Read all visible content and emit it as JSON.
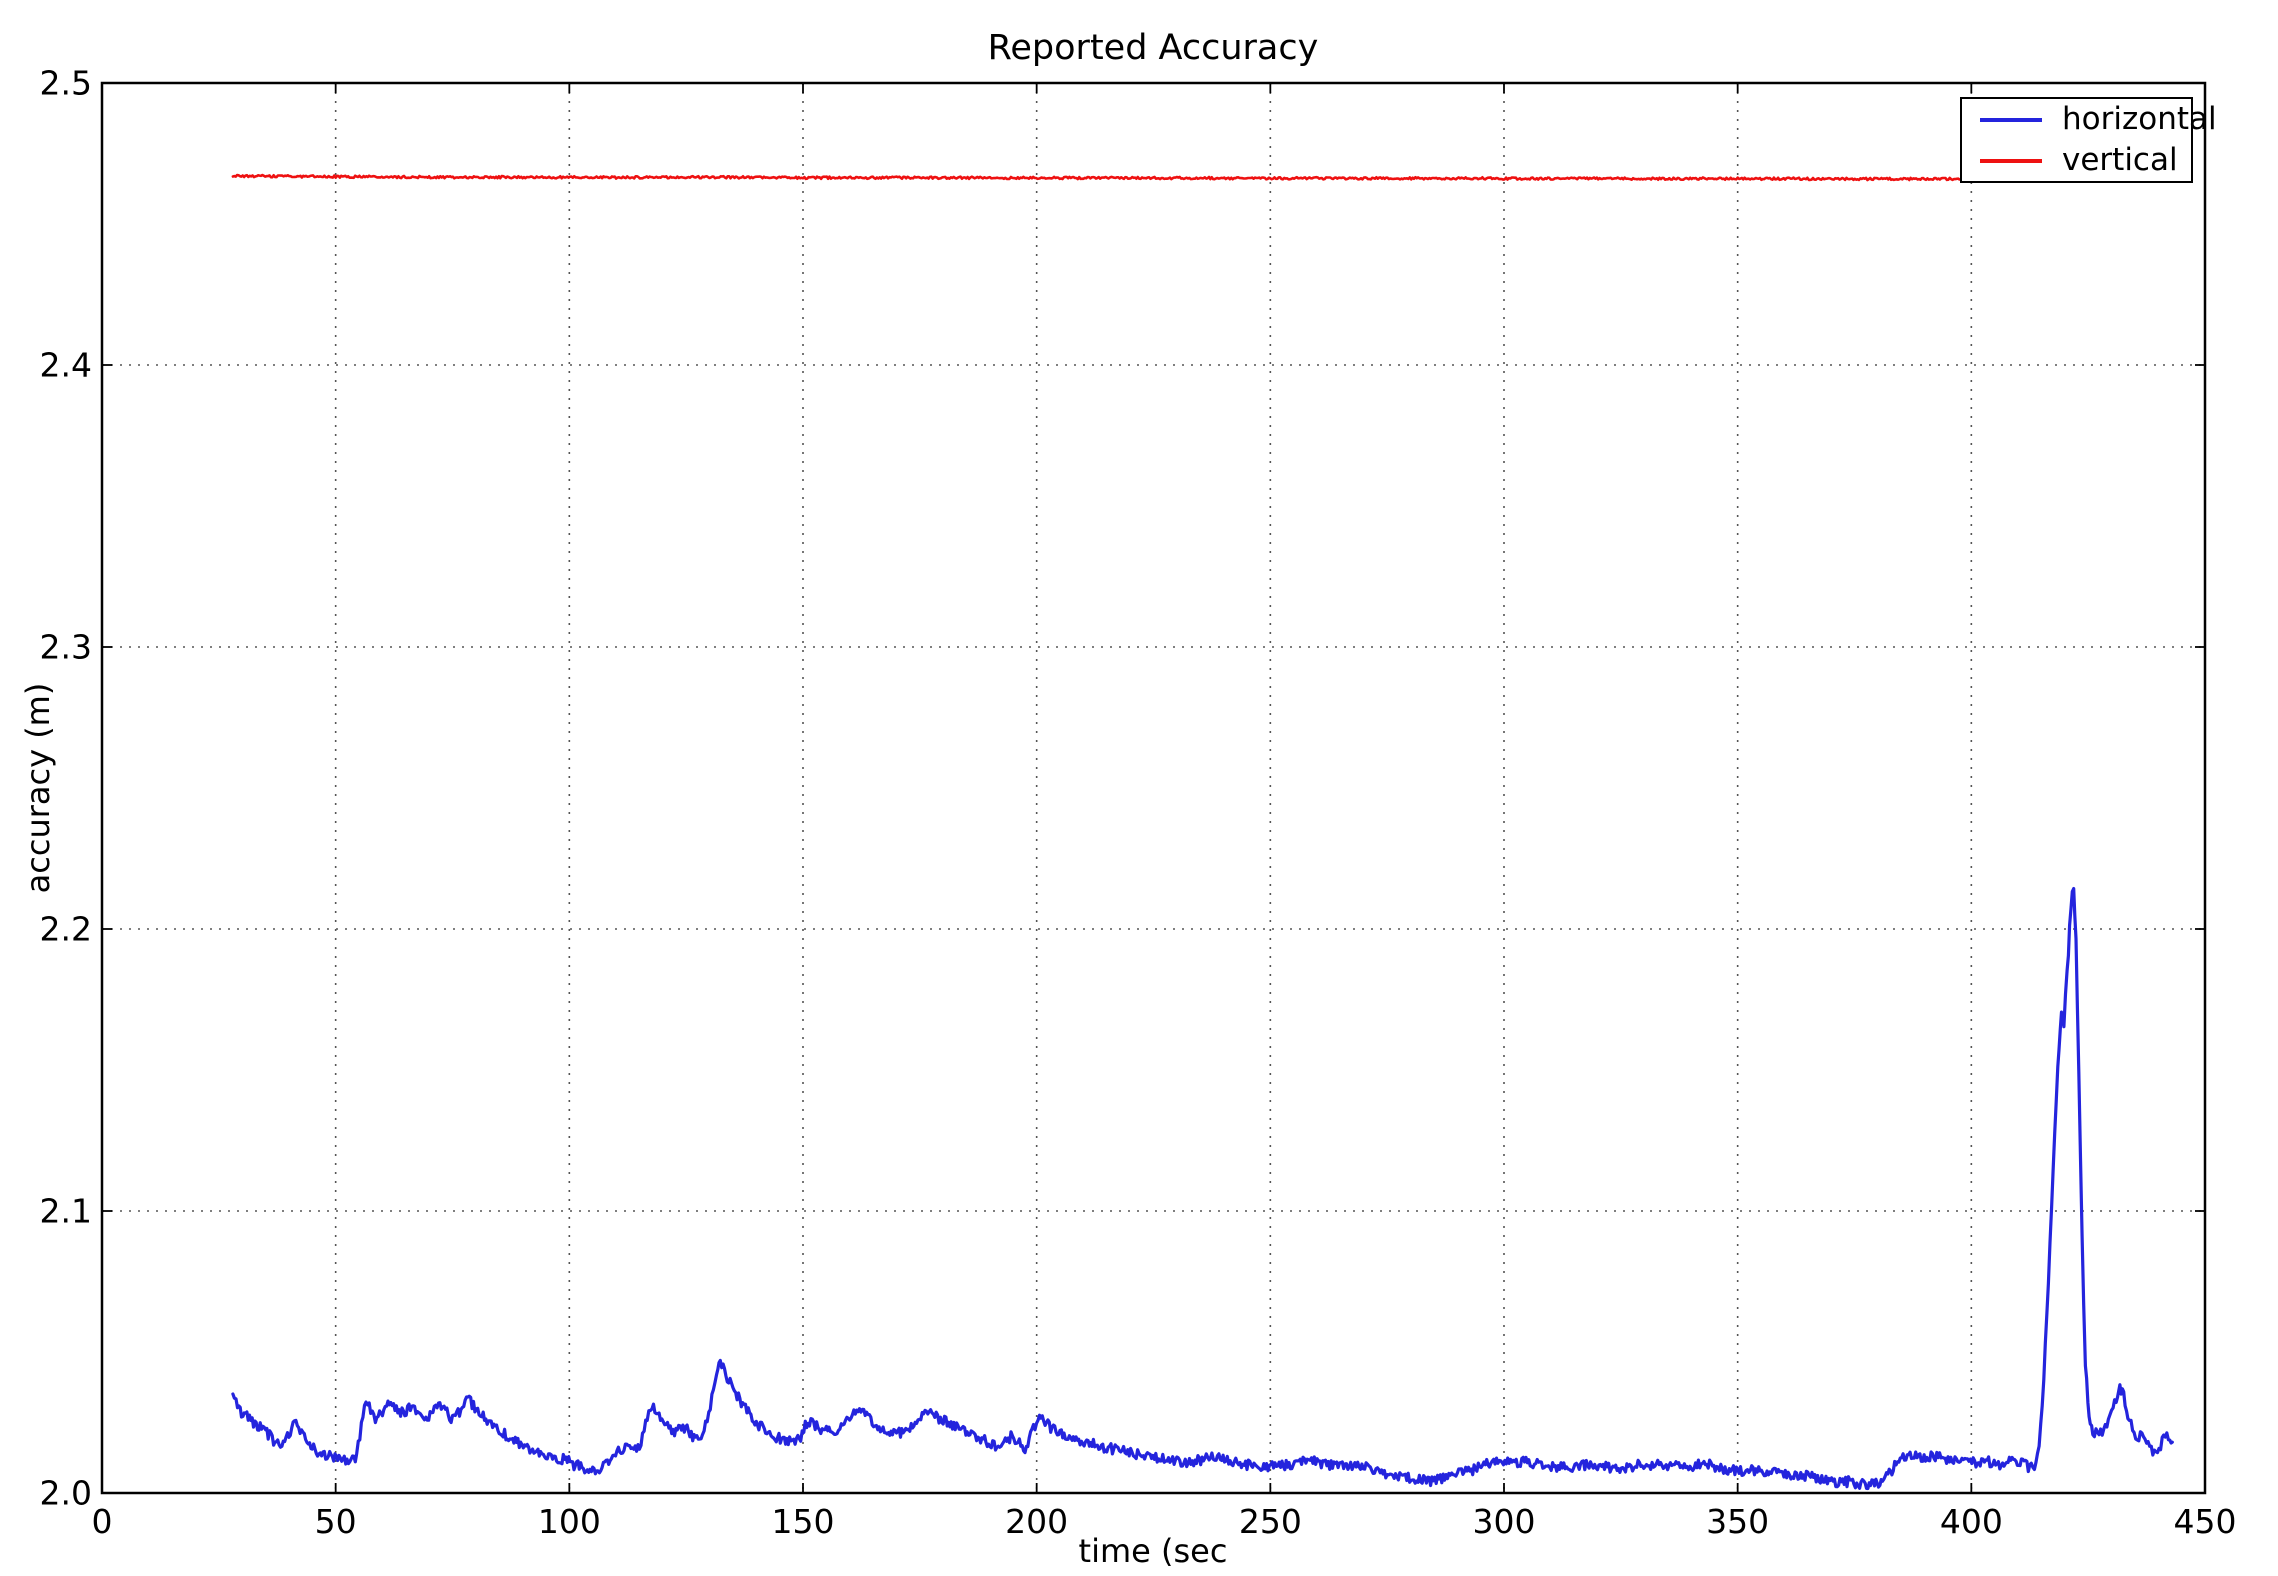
{
  "chart_data": {
    "type": "line",
    "title": "Reported Accuracy",
    "xlabel": "time (sec",
    "ylabel": "accuracy (m)",
    "xlim": [
      0,
      450
    ],
    "ylim": [
      2.0,
      2.5
    ],
    "grid": "dotted",
    "legend": {
      "position": "upper right",
      "entries": [
        {
          "label": "horizontal",
          "color": "#2424dd"
        },
        {
          "label": "vertical",
          "color": "#ee1111"
        }
      ]
    },
    "x_ticks": [
      {
        "value": 0,
        "label": "0"
      },
      {
        "value": 50,
        "label": "50"
      },
      {
        "value": 100,
        "label": "100"
      },
      {
        "value": 150,
        "label": "150"
      },
      {
        "value": 200,
        "label": "200"
      },
      {
        "value": 250,
        "label": "250"
      },
      {
        "value": 300,
        "label": "300"
      },
      {
        "value": 350,
        "label": "350"
      },
      {
        "value": 400,
        "label": "400"
      },
      {
        "value": 450,
        "label": "450"
      }
    ],
    "y_ticks": [
      {
        "value": 2.0,
        "label": "2.0"
      },
      {
        "value": 2.1,
        "label": "2.1"
      },
      {
        "value": 2.2,
        "label": "2.2"
      },
      {
        "value": 2.3,
        "label": "2.3"
      },
      {
        "value": 2.4,
        "label": "2.4"
      },
      {
        "value": 2.5,
        "label": "2.5"
      }
    ],
    "series": [
      {
        "name": "horizontal",
        "color": "#2424dd",
        "stroke_width": 3.2,
        "noise_amp": 0.0018,
        "points": [
          [
            28,
            2.035
          ],
          [
            29,
            2.03
          ],
          [
            31,
            2.027
          ],
          [
            33,
            2.024
          ],
          [
            35,
            2.022
          ],
          [
            37,
            2.018
          ],
          [
            38.5,
            2.016
          ],
          [
            40,
            2.021
          ],
          [
            41.5,
            2.025
          ],
          [
            43,
            2.021
          ],
          [
            45,
            2.016
          ],
          [
            47,
            2.013
          ],
          [
            49,
            2.013
          ],
          [
            51,
            2.012
          ],
          [
            53,
            2.011
          ],
          [
            54.5,
            2.013
          ],
          [
            55.5,
            2.024
          ],
          [
            56.5,
            2.034
          ],
          [
            57.5,
            2.03
          ],
          [
            58.5,
            2.026
          ],
          [
            60,
            2.029
          ],
          [
            61.5,
            2.032
          ],
          [
            63,
            2.03
          ],
          [
            64.5,
            2.028
          ],
          [
            66,
            2.031
          ],
          [
            67.5,
            2.028
          ],
          [
            69,
            2.026
          ],
          [
            70.5,
            2.028
          ],
          [
            72,
            2.031
          ],
          [
            73.5,
            2.029
          ],
          [
            75,
            2.026
          ],
          [
            76.5,
            2.029
          ],
          [
            78,
            2.034
          ],
          [
            79.5,
            2.031
          ],
          [
            81,
            2.028
          ],
          [
            83,
            2.025
          ],
          [
            85,
            2.022
          ],
          [
            87,
            2.02
          ],
          [
            89,
            2.018
          ],
          [
            91,
            2.016
          ],
          [
            93,
            2.015
          ],
          [
            95,
            2.013
          ],
          [
            97,
            2.012
          ],
          [
            99,
            2.012
          ],
          [
            101,
            2.01
          ],
          [
            103,
            2.009
          ],
          [
            105,
            2.008
          ],
          [
            107,
            2.009
          ],
          [
            109,
            2.012
          ],
          [
            110.5,
            2.015
          ],
          [
            112,
            2.016
          ],
          [
            113.5,
            2.017
          ],
          [
            115,
            2.016
          ],
          [
            116,
            2.022
          ],
          [
            117,
            2.029
          ],
          [
            118,
            2.03
          ],
          [
            119.5,
            2.027
          ],
          [
            121,
            2.024
          ],
          [
            122.5,
            2.022
          ],
          [
            124,
            2.024
          ],
          [
            125.5,
            2.022
          ],
          [
            127,
            2.019
          ],
          [
            128.5,
            2.02
          ],
          [
            129.5,
            2.026
          ],
          [
            130.5,
            2.034
          ],
          [
            131.5,
            2.043
          ],
          [
            132.3,
            2.047
          ],
          [
            133.5,
            2.042
          ],
          [
            135,
            2.037
          ],
          [
            136.5,
            2.033
          ],
          [
            138,
            2.029
          ],
          [
            140,
            2.025
          ],
          [
            142,
            2.022
          ],
          [
            144,
            2.02
          ],
          [
            146,
            2.019
          ],
          [
            148,
            2.018
          ],
          [
            149.5,
            2.02
          ],
          [
            150.5,
            2.024
          ],
          [
            152,
            2.025
          ],
          [
            153.5,
            2.023
          ],
          [
            155,
            2.022
          ],
          [
            157,
            2.022
          ],
          [
            158.5,
            2.024
          ],
          [
            160,
            2.027
          ],
          [
            161.5,
            2.03
          ],
          [
            163,
            2.029
          ],
          [
            164.5,
            2.026
          ],
          [
            166,
            2.023
          ],
          [
            168,
            2.022
          ],
          [
            170,
            2.021
          ],
          [
            172,
            2.022
          ],
          [
            174,
            2.024
          ],
          [
            175.5,
            2.027
          ],
          [
            177,
            2.029
          ],
          [
            178.5,
            2.027
          ],
          [
            180,
            2.026
          ],
          [
            182,
            2.024
          ],
          [
            184,
            2.022
          ],
          [
            186,
            2.021
          ],
          [
            188,
            2.019
          ],
          [
            190,
            2.018
          ],
          [
            191.5,
            2.016
          ],
          [
            193,
            2.018
          ],
          [
            194.5,
            2.02
          ],
          [
            196,
            2.018
          ],
          [
            197.5,
            2.016
          ],
          [
            199,
            2.021
          ],
          [
            200.3,
            2.027
          ],
          [
            201.5,
            2.026
          ],
          [
            203,
            2.023
          ],
          [
            205,
            2.021
          ],
          [
            207,
            2.02
          ],
          [
            209,
            2.019
          ],
          [
            211,
            2.018
          ],
          [
            213,
            2.017
          ],
          [
            215,
            2.016
          ],
          [
            218,
            2.015
          ],
          [
            221,
            2.014
          ],
          [
            224,
            2.013
          ],
          [
            227,
            2.012
          ],
          [
            230,
            2.011
          ],
          [
            233,
            2.011
          ],
          [
            236,
            2.012
          ],
          [
            239,
            2.013
          ],
          [
            242,
            2.011
          ],
          [
            245,
            2.01
          ],
          [
            248,
            2.009
          ],
          [
            251,
            2.01
          ],
          [
            254,
            2.01
          ],
          [
            257,
            2.011
          ],
          [
            260,
            2.011
          ],
          [
            263,
            2.01
          ],
          [
            266,
            2.01
          ],
          [
            269,
            2.01
          ],
          [
            272,
            2.008
          ],
          [
            275,
            2.007
          ],
          [
            278,
            2.006
          ],
          [
            281,
            2.005
          ],
          [
            284,
            2.004
          ],
          [
            287,
            2.005
          ],
          [
            290,
            2.007
          ],
          [
            293,
            2.008
          ],
          [
            296,
            2.01
          ],
          [
            299,
            2.011
          ],
          [
            302,
            2.011
          ],
          [
            305,
            2.011
          ],
          [
            308,
            2.01
          ],
          [
            311,
            2.009
          ],
          [
            314,
            2.009
          ],
          [
            317,
            2.01
          ],
          [
            320,
            2.01
          ],
          [
            323,
            2.009
          ],
          [
            326,
            2.009
          ],
          [
            329,
            2.01
          ],
          [
            332,
            2.01
          ],
          [
            335,
            2.01
          ],
          [
            338,
            2.009
          ],
          [
            341,
            2.01
          ],
          [
            344,
            2.01
          ],
          [
            347,
            2.008
          ],
          [
            350,
            2.008
          ],
          [
            353,
            2.008
          ],
          [
            356,
            2.007
          ],
          [
            359,
            2.007
          ],
          [
            362,
            2.006
          ],
          [
            365,
            2.006
          ],
          [
            368,
            2.005
          ],
          [
            371,
            2.004
          ],
          [
            374,
            2.004
          ],
          [
            377,
            2.003
          ],
          [
            379,
            2.003
          ],
          [
            381,
            2.004
          ],
          [
            383,
            2.008
          ],
          [
            384.5,
            2.012
          ],
          [
            386,
            2.013
          ],
          [
            389,
            2.013
          ],
          [
            392,
            2.013
          ],
          [
            395,
            2.012
          ],
          [
            398,
            2.012
          ],
          [
            401,
            2.011
          ],
          [
            404,
            2.011
          ],
          [
            407,
            2.01
          ],
          [
            409,
            2.012
          ],
          [
            411,
            2.011
          ],
          [
            412.5,
            2.009
          ],
          [
            413.5,
            2.01
          ],
          [
            414.5,
            2.018
          ],
          [
            415.5,
            2.04
          ],
          [
            416.5,
            2.075
          ],
          [
            417.5,
            2.115
          ],
          [
            418.5,
            2.15
          ],
          [
            419.3,
            2.172
          ],
          [
            419.8,
            2.166
          ],
          [
            420.5,
            2.185
          ],
          [
            421.3,
            2.207
          ],
          [
            421.9,
            2.216
          ],
          [
            422.4,
            2.195
          ],
          [
            423,
            2.15
          ],
          [
            423.7,
            2.09
          ],
          [
            424.4,
            2.045
          ],
          [
            425.2,
            2.027
          ],
          [
            426,
            2.022
          ],
          [
            427,
            2.021
          ],
          [
            428,
            2.022
          ],
          [
            429,
            2.024
          ],
          [
            430,
            2.028
          ],
          [
            431,
            2.033
          ],
          [
            431.8,
            2.037
          ],
          [
            432.6,
            2.035
          ],
          [
            433.5,
            2.028
          ],
          [
            434.5,
            2.022
          ],
          [
            435.5,
            2.019
          ],
          [
            436.5,
            2.022
          ],
          [
            437.5,
            2.019
          ],
          [
            438.5,
            2.015
          ],
          [
            439.5,
            2.014
          ],
          [
            440.5,
            2.017
          ],
          [
            441.5,
            2.02
          ],
          [
            442.5,
            2.019
          ],
          [
            443,
            2.018
          ]
        ]
      },
      {
        "name": "vertical",
        "color": "#ee1111",
        "stroke_width": 2.6,
        "noise_amp": 0.0004,
        "points": [
          [
            28,
            2.467
          ],
          [
            50,
            2.4668
          ],
          [
            70,
            2.4666
          ],
          [
            90,
            2.4666
          ],
          [
            110,
            2.4665
          ],
          [
            130,
            2.4666
          ],
          [
            150,
            2.4664
          ],
          [
            170,
            2.4664
          ],
          [
            190,
            2.4664
          ],
          [
            210,
            2.4663
          ],
          [
            230,
            2.4663
          ],
          [
            250,
            2.4662
          ],
          [
            270,
            2.4662
          ],
          [
            290,
            2.4662
          ],
          [
            310,
            2.4661
          ],
          [
            330,
            2.4661
          ],
          [
            350,
            2.4661
          ],
          [
            370,
            2.466
          ],
          [
            390,
            2.466
          ],
          [
            410,
            2.4659
          ],
          [
            425,
            2.4659
          ],
          [
            443,
            2.4658
          ]
        ]
      }
    ]
  },
  "style": {
    "spine_color": "#000000",
    "grid_color": "#555555",
    "background": "#ffffff"
  }
}
